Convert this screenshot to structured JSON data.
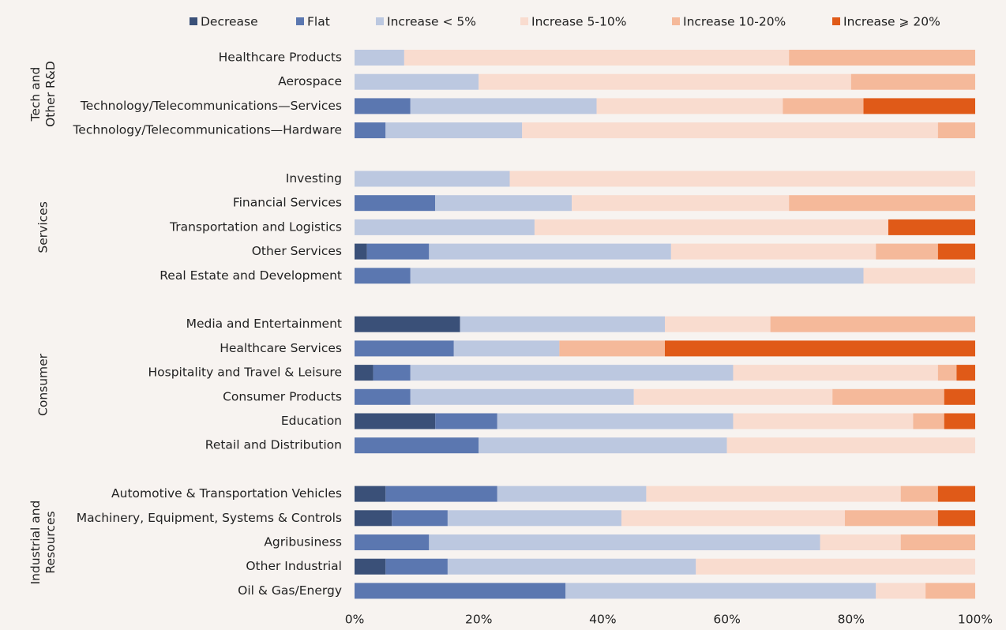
{
  "chart_data": {
    "type": "stacked-bar-horizontal",
    "groups": [
      {
        "name": [
          "Tech and",
          "Other R&D"
        ],
        "categories": [
          "Healthcare Products",
          "Aerospace",
          "Technology/Telecommunications—Services",
          "Technology/Telecommunications—Hardware"
        ]
      },
      {
        "name": [
          "Services"
        ],
        "categories": [
          "Investing",
          "Financial Services",
          "Transportation and Logistics",
          "Other Services",
          "Real Estate and Development"
        ]
      },
      {
        "name": [
          "Consumer"
        ],
        "categories": [
          "Media and Entertainment",
          "Healthcare Services",
          "Hospitality and Travel & Leisure",
          "Consumer Products",
          "Education",
          "Retail and Distribution"
        ]
      },
      {
        "name": [
          "Industrial and",
          "Resources"
        ],
        "categories": [
          "Automotive & Transportation Vehicles",
          "Machinery, Equipment, Systems & Controls",
          "Agribusiness",
          "Other Industrial",
          "Oil & Gas/Energy"
        ]
      }
    ],
    "series": [
      {
        "name": "Decrease",
        "color": "#3a5078",
        "values": [
          0,
          0,
          0,
          0,
          0,
          0,
          0,
          2,
          0,
          17,
          0,
          3,
          0,
          13,
          0,
          5,
          6,
          0,
          5,
          0
        ]
      },
      {
        "name": "Flat",
        "color": "#5b77b0",
        "values": [
          0,
          0,
          9,
          5,
          0,
          13,
          0,
          10,
          9,
          0,
          16,
          6,
          9,
          10,
          20,
          18,
          9,
          12,
          10,
          34
        ]
      },
      {
        "name": "Increase < 5%",
        "color": "#bcc8e0",
        "values": [
          8,
          20,
          30,
          22,
          25,
          22,
          29,
          39,
          73,
          33,
          17,
          52,
          36,
          38,
          40,
          24,
          28,
          63,
          40,
          50
        ]
      },
      {
        "name": "Increase 5-10%",
        "color": "#f9dccf",
        "values": [
          62,
          60,
          30,
          67,
          75,
          35,
          57,
          33,
          18,
          17,
          0,
          33,
          32,
          29,
          40,
          41,
          36,
          13,
          45,
          8
        ]
      },
      {
        "name": "Increase 10-20%",
        "color": "#f5b99a",
        "values": [
          30,
          20,
          13,
          6,
          0,
          30,
          0,
          10,
          0,
          33,
          17,
          3,
          18,
          5,
          0,
          6,
          15,
          12,
          0,
          8
        ]
      },
      {
        "name": "Increase ⩾ 20%",
        "color": "#e05a18",
        "values": [
          0,
          0,
          18,
          0,
          0,
          0,
          14,
          6,
          0,
          0,
          50,
          3,
          5,
          5,
          0,
          6,
          6,
          0,
          0,
          0
        ]
      }
    ],
    "xlim": [
      0,
      100
    ],
    "xticks": [
      {
        "value": 0,
        "label": "0%"
      },
      {
        "value": 20,
        "label": "20%"
      },
      {
        "value": 40,
        "label": "40%"
      },
      {
        "value": 60,
        "label": "60%"
      },
      {
        "value": 80,
        "label": "80%"
      },
      {
        "value": 100,
        "label": "100%"
      }
    ]
  }
}
